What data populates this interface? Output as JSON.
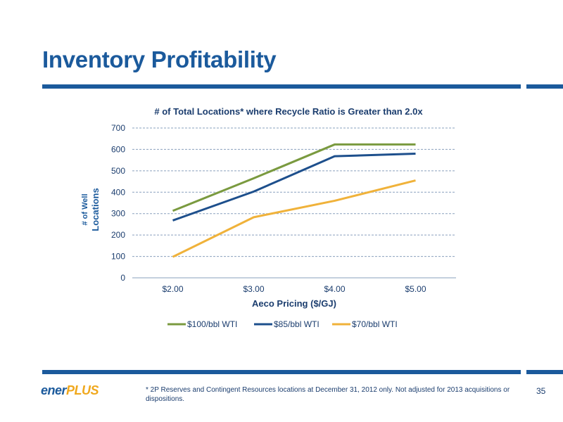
{
  "slide": {
    "title": "Inventory Profitability",
    "footnote": "* 2P Reserves and Contingent Resources locations at December 31, 2012 only.  Not adjusted for 2013 acquisitions or dispositions.",
    "page_number": "35",
    "logo_part1": "ener",
    "logo_part2": "PLUS"
  },
  "colors": {
    "brand_blue": "#1b5a9c",
    "series_green": "#7a9a3f",
    "series_navy": "#1d4f8c",
    "series_gold": "#f0b23a"
  },
  "chart_data": {
    "type": "line",
    "title": "# of Total Locations* where Recycle Ratio is Greater than 2.0x",
    "xlabel": "Aeco Pricing ($/GJ)",
    "ylabel": "# of Well Locations",
    "ylabel_line1": "# of Well",
    "ylabel_line2": "Locations",
    "categories": [
      "$2.00",
      "$3.00",
      "$4.00",
      "$5.00"
    ],
    "yticks": [
      "0",
      "100",
      "200",
      "300",
      "400",
      "500",
      "600",
      "700"
    ],
    "ylim": [
      0,
      700
    ],
    "grid": true,
    "legend_position": "bottom",
    "series": [
      {
        "name": "$100/bbl WTI",
        "values": [
          313,
          465,
          623,
          623
        ],
        "color": "#7a9a3f"
      },
      {
        "name": "$85/bbl WTI",
        "values": [
          268,
          403,
          568,
          580
        ],
        "color": "#1d4f8c"
      },
      {
        "name": "$70/bbl WTI",
        "values": [
          98,
          283,
          360,
          455
        ],
        "color": "#f0b23a"
      }
    ]
  }
}
